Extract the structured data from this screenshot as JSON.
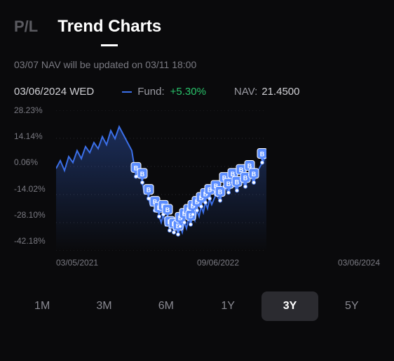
{
  "tabs": {
    "pl_label": "P/L",
    "trend_label": "Trend Charts",
    "active": "trend"
  },
  "notice": "03/07 NAV will be updated on 03/11 18:00",
  "info": {
    "date": "03/06/2024 WED",
    "fund_label": "Fund:",
    "fund_change": "+5.30%",
    "fund_change_color": "#29c46b",
    "nav_label": "NAV:",
    "nav_value": "21.4500"
  },
  "chart": {
    "type": "line",
    "y_ticks": [
      "28.23%",
      "14.14%",
      "0.06%",
      "-14.02%",
      "-28.10%",
      "-42.18%"
    ],
    "y_min": -42.18,
    "y_max": 28.23,
    "x_labels": [
      "03/05/2021",
      "09/06/2022",
      "03/06/2024"
    ],
    "line_color": "#3b6fe8",
    "area_top": "rgba(59,111,232,0.35)",
    "area_bottom": "rgba(59,111,232,0.0)",
    "grid_color": "#2a2a30",
    "background": "#0a0a0c",
    "series": [
      {
        "x": 0,
        "y": -1
      },
      {
        "x": 2,
        "y": 3
      },
      {
        "x": 4,
        "y": -2
      },
      {
        "x": 6,
        "y": 5
      },
      {
        "x": 8,
        "y": 2
      },
      {
        "x": 10,
        "y": 8
      },
      {
        "x": 12,
        "y": 4
      },
      {
        "x": 14,
        "y": 10
      },
      {
        "x": 16,
        "y": 7
      },
      {
        "x": 18,
        "y": 12
      },
      {
        "x": 20,
        "y": 9
      },
      {
        "x": 22,
        "y": 15
      },
      {
        "x": 24,
        "y": 11
      },
      {
        "x": 26,
        "y": 18
      },
      {
        "x": 28,
        "y": 14
      },
      {
        "x": 30,
        "y": 20
      },
      {
        "x": 32,
        "y": 16
      },
      {
        "x": 34,
        "y": 12
      },
      {
        "x": 36,
        "y": 8
      },
      {
        "x": 38,
        "y": -5
      },
      {
        "x": 40,
        "y": -2
      },
      {
        "x": 41,
        "y": -8
      },
      {
        "x": 42,
        "y": -14
      },
      {
        "x": 43,
        "y": -10
      },
      {
        "x": 44,
        "y": -16
      },
      {
        "x": 45,
        "y": -20
      },
      {
        "x": 46,
        "y": -15
      },
      {
        "x": 47,
        "y": -22
      },
      {
        "x": 48,
        "y": -18
      },
      {
        "x": 49,
        "y": -25
      },
      {
        "x": 50,
        "y": -28
      },
      {
        "x": 51,
        "y": -24
      },
      {
        "x": 52,
        "y": -30
      },
      {
        "x": 53,
        "y": -26
      },
      {
        "x": 54,
        "y": -32
      },
      {
        "x": 55,
        "y": -28
      },
      {
        "x": 56,
        "y": -33
      },
      {
        "x": 57,
        "y": -29
      },
      {
        "x": 58,
        "y": -34
      },
      {
        "x": 59,
        "y": -30
      },
      {
        "x": 60,
        "y": -33
      },
      {
        "x": 61,
        "y": -28
      },
      {
        "x": 62,
        "y": -31
      },
      {
        "x": 63,
        "y": -26
      },
      {
        "x": 64,
        "y": -29
      },
      {
        "x": 65,
        "y": -24
      },
      {
        "x": 66,
        "y": -27
      },
      {
        "x": 67,
        "y": -22
      },
      {
        "x": 68,
        "y": -25
      },
      {
        "x": 69,
        "y": -20
      },
      {
        "x": 70,
        "y": -23
      },
      {
        "x": 71,
        "y": -18
      },
      {
        "x": 72,
        "y": -21
      },
      {
        "x": 73,
        "y": -16
      },
      {
        "x": 74,
        "y": -19
      },
      {
        "x": 76,
        "y": -14
      },
      {
        "x": 78,
        "y": -17
      },
      {
        "x": 80,
        "y": -10
      },
      {
        "x": 82,
        "y": -13
      },
      {
        "x": 84,
        "y": -8
      },
      {
        "x": 86,
        "y": -12
      },
      {
        "x": 88,
        "y": -6
      },
      {
        "x": 90,
        "y": -10
      },
      {
        "x": 92,
        "y": -4
      },
      {
        "x": 94,
        "y": -8
      },
      {
        "x": 96,
        "y": -2
      },
      {
        "x": 98,
        "y": 2
      },
      {
        "x": 100,
        "y": 5.3
      }
    ],
    "markers": [
      {
        "x": 38,
        "y": -5
      },
      {
        "x": 41,
        "y": -8
      },
      {
        "x": 44,
        "y": -16
      },
      {
        "x": 47,
        "y": -22
      },
      {
        "x": 49,
        "y": -25
      },
      {
        "x": 51,
        "y": -24
      },
      {
        "x": 53,
        "y": -26
      },
      {
        "x": 54,
        "y": -32
      },
      {
        "x": 56,
        "y": -33
      },
      {
        "x": 58,
        "y": -34
      },
      {
        "x": 59,
        "y": -30
      },
      {
        "x": 61,
        "y": -28
      },
      {
        "x": 63,
        "y": -26
      },
      {
        "x": 64,
        "y": -29
      },
      {
        "x": 65,
        "y": -24
      },
      {
        "x": 67,
        "y": -22
      },
      {
        "x": 69,
        "y": -20
      },
      {
        "x": 71,
        "y": -18
      },
      {
        "x": 73,
        "y": -16
      },
      {
        "x": 76,
        "y": -14
      },
      {
        "x": 78,
        "y": -17
      },
      {
        "x": 80,
        "y": -10
      },
      {
        "x": 82,
        "y": -13
      },
      {
        "x": 84,
        "y": -8
      },
      {
        "x": 86,
        "y": -12
      },
      {
        "x": 88,
        "y": -6
      },
      {
        "x": 90,
        "y": -10
      },
      {
        "x": 92,
        "y": -4
      },
      {
        "x": 94,
        "y": -8
      },
      {
        "x": 98,
        "y": 2
      }
    ],
    "marker_label": "B",
    "marker_fill": "#5b8dff",
    "marker_stroke": "#ffffff",
    "marker_dot_fill": "#ffffff"
  },
  "ranges": {
    "items": [
      "1M",
      "3M",
      "6M",
      "1Y",
      "3Y",
      "5Y"
    ],
    "active": "3Y"
  }
}
